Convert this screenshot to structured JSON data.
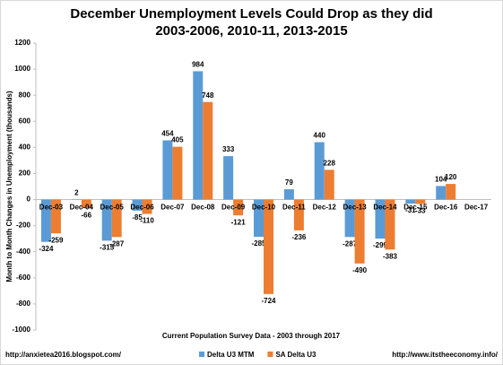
{
  "chart_data": {
    "type": "bar",
    "title": "December Unemployment Levels Could Drop as they did 2003-2006, 2010-11, 2013-2015",
    "x_label": "Current Population Survey Data - 2003 through 2017",
    "y_label": "Month to Month Changes in Unemployment (thousands)",
    "categories": [
      "Dec-03",
      "Dec-04",
      "Dec-05",
      "Dec-06",
      "Dec-07",
      "Dec-08",
      "Dec-09",
      "Dec-10",
      "Dec-11",
      "Dec-12",
      "Dec-13",
      "Dec-14",
      "Dec-15",
      "Dec-16",
      "Dec-17"
    ],
    "series": [
      {
        "name": "Delta U3 MTM",
        "color": "#5b9bd5",
        "values": [
          -324,
          2,
          -315,
          -85,
          454,
          984,
          333,
          -285,
          79,
          440,
          -287,
          -299,
          -31,
          104,
          null
        ]
      },
      {
        "name": "SA Delta U3",
        "color": "#ed7d31",
        "values": [
          -259,
          -66,
          -287,
          -110,
          405,
          748,
          -121,
          -724,
          -236,
          228,
          -490,
          -383,
          -33,
          120,
          null
        ]
      }
    ],
    "ylim": [
      -1000,
      1200
    ],
    "yticks": [
      -1000,
      -800,
      -600,
      -400,
      -200,
      0,
      200,
      400,
      600,
      800,
      1000,
      1200
    ],
    "grid": false,
    "legend": "bottom",
    "footer_left": "http://anxietea2016.blogspot.com/",
    "footer_right": "http://www.itstheeconomy.info/"
  }
}
